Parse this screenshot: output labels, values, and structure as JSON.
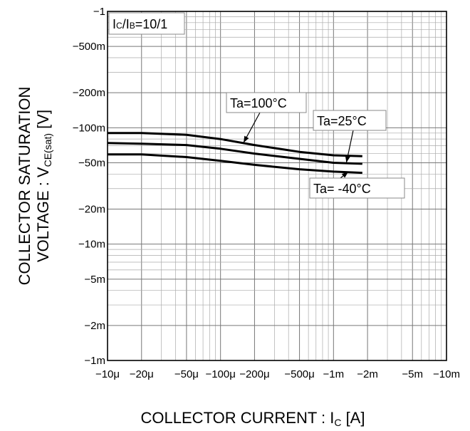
{
  "chart_data": {
    "type": "line",
    "scale": {
      "x": "log",
      "y": "log"
    },
    "grid": true,
    "xlim": [
      -1e-05,
      -0.01
    ],
    "ylim": [
      -0.001,
      -1
    ],
    "x_ticks": [
      {
        "value": -1e-05,
        "label": "−10μ"
      },
      {
        "value": -2e-05,
        "label": "−20μ"
      },
      {
        "value": -5e-05,
        "label": "−50μ"
      },
      {
        "value": -0.0001,
        "label": "−100μ"
      },
      {
        "value": -0.0002,
        "label": "−200μ"
      },
      {
        "value": -0.0005,
        "label": "−500μ"
      },
      {
        "value": -0.001,
        "label": "−1m"
      },
      {
        "value": -0.002,
        "label": "−2m"
      },
      {
        "value": -0.005,
        "label": "−5m"
      },
      {
        "value": -0.01,
        "label": "−10m"
      }
    ],
    "y_ticks": [
      {
        "value": -1,
        "label": "−1"
      },
      {
        "value": -0.5,
        "label": "−500m"
      },
      {
        "value": -0.2,
        "label": "−200m"
      },
      {
        "value": -0.1,
        "label": "−100m"
      },
      {
        "value": -0.05,
        "label": "−50m"
      },
      {
        "value": -0.02,
        "label": "−20m"
      },
      {
        "value": -0.01,
        "label": "−10m"
      },
      {
        "value": -0.005,
        "label": "−5m"
      },
      {
        "value": -0.002,
        "label": "−2m"
      },
      {
        "value": -0.001,
        "label": "−1m"
      }
    ],
    "xlabel": {
      "main": "COLLECTOR CURRENT : I",
      "sub": "C",
      "unit": " [A]"
    },
    "ylabel": {
      "line1": "COLLECTOR SATURATION",
      "line2_main": "VOLTAGE : V",
      "line2_sub": "CE(sat)",
      "line2_unit": " [V]"
    },
    "condition": {
      "main1": "I",
      "sub1": "C",
      "main2": "/I",
      "sub2": "B",
      "main3": "=10/1"
    },
    "series": [
      {
        "name": "Ta=100°C",
        "x": [
          -1e-05,
          -2e-05,
          -5e-05,
          -0.0001,
          -0.0002,
          -0.0005,
          -0.001,
          -0.0018
        ],
        "y": [
          -0.09,
          -0.09,
          -0.087,
          -0.08,
          -0.071,
          -0.062,
          -0.058,
          -0.057
        ]
      },
      {
        "name": "Ta=25°C",
        "x": [
          -1e-05,
          -2e-05,
          -5e-05,
          -0.0001,
          -0.0002,
          -0.0005,
          -0.001,
          -0.0018
        ],
        "y": [
          -0.074,
          -0.073,
          -0.071,
          -0.066,
          -0.06,
          -0.054,
          -0.05,
          -0.049
        ]
      },
      {
        "name": "Ta= -40°C",
        "x": [
          -1e-05,
          -2e-05,
          -5e-05,
          -0.0001,
          -0.0002,
          -0.0005,
          -0.001,
          -0.0018
        ],
        "y": [
          -0.059,
          -0.059,
          -0.056,
          -0.052,
          -0.048,
          -0.044,
          -0.042,
          -0.041
        ]
      }
    ],
    "annotations": [
      {
        "series": 0,
        "label": "Ta=100°C",
        "anchor_x": -0.00016,
        "anchor_y": -0.0745
      },
      {
        "series": 1,
        "label": "Ta=25°C",
        "anchor_x": -0.0013,
        "anchor_y": -0.0502
      },
      {
        "series": 2,
        "label": "Ta= -40°C",
        "anchor_x": -0.00135,
        "anchor_y": -0.0418
      }
    ]
  }
}
